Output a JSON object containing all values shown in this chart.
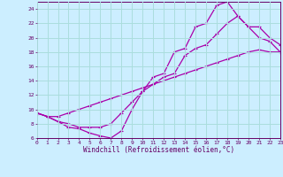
{
  "xlabel": "Windchill (Refroidissement éolien,°C)",
  "xlim": [
    0,
    23
  ],
  "ylim": [
    6,
    25
  ],
  "yticks": [
    6,
    8,
    10,
    12,
    14,
    16,
    18,
    20,
    22,
    24
  ],
  "xticks": [
    0,
    1,
    2,
    3,
    4,
    5,
    6,
    7,
    8,
    9,
    10,
    11,
    12,
    13,
    14,
    15,
    16,
    17,
    18,
    19,
    20,
    21,
    22,
    23
  ],
  "bg_color": "#cceeff",
  "grid_color": "#aadddd",
  "line_color": "#aa00aa",
  "line1_x": [
    0,
    1,
    2,
    3,
    4,
    5,
    6,
    7,
    8,
    9,
    10,
    11,
    12,
    13,
    14,
    15,
    16,
    17,
    18,
    19,
    20,
    21,
    22,
    23
  ],
  "line1_y": [
    9.5,
    9.0,
    9.0,
    9.5,
    10.0,
    10.5,
    11.0,
    11.5,
    12.0,
    12.5,
    13.0,
    13.5,
    14.0,
    14.5,
    15.0,
    15.5,
    16.0,
    16.5,
    17.0,
    17.5,
    18.0,
    18.3,
    18.0,
    18.0
  ],
  "line2_x": [
    0,
    1,
    2,
    3,
    4,
    5,
    6,
    7,
    8,
    9,
    10,
    11,
    12,
    13,
    14,
    15,
    16,
    17,
    18,
    19,
    20,
    21,
    22,
    23
  ],
  "line2_y": [
    9.5,
    9.0,
    8.3,
    7.5,
    7.3,
    6.7,
    6.3,
    6.0,
    7.0,
    10.0,
    12.5,
    14.5,
    15.0,
    18.0,
    18.5,
    21.5,
    22.0,
    24.5,
    25.0,
    23.0,
    21.5,
    20.0,
    19.5,
    18.0
  ],
  "line3_x": [
    0,
    1,
    2,
    3,
    4,
    5,
    6,
    7,
    8,
    9,
    10,
    11,
    12,
    13,
    14,
    15,
    16,
    17,
    18,
    19,
    20,
    21,
    22,
    23
  ],
  "line3_y": [
    9.5,
    9.0,
    8.3,
    8.0,
    7.5,
    7.5,
    7.5,
    8.0,
    9.5,
    11.0,
    12.5,
    13.5,
    14.5,
    15.0,
    17.5,
    18.5,
    19.0,
    20.5,
    22.0,
    23.0,
    21.5,
    21.5,
    20.0,
    19.0
  ]
}
